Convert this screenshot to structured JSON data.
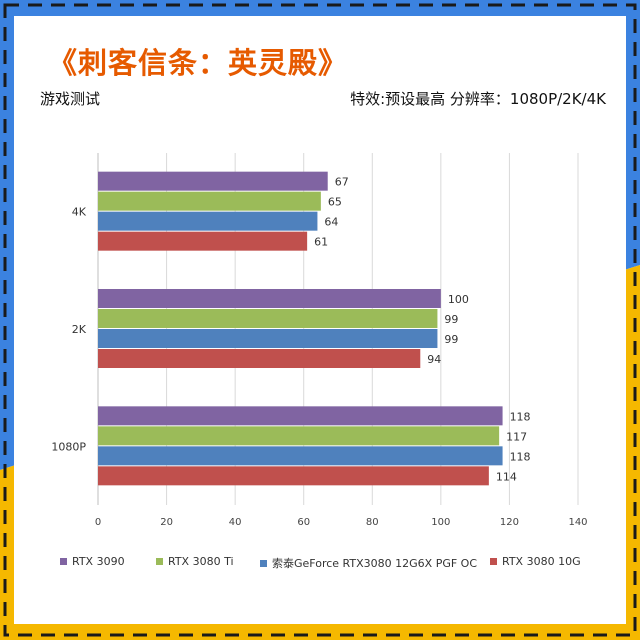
{
  "header": {
    "title": "《刺客信条：英灵殿》",
    "subtitle_left": "游戏测试",
    "subtitle_right": "特效:预设最高  分辨率：1080P/2K/4K"
  },
  "colors": {
    "frame_blue": "#3b82e0",
    "frame_yellow": "#f5b800",
    "title": "#e65a00"
  },
  "chart_data": {
    "type": "bar",
    "orientation": "horizontal",
    "categories": [
      "4K",
      "2K",
      "1080P"
    ],
    "series": [
      {
        "name": "RTX 3090",
        "color": "#8064a2",
        "values": [
          67,
          100,
          118
        ]
      },
      {
        "name": "RTX 3080 Ti",
        "color": "#9bbb59",
        "values": [
          65,
          99,
          117
        ]
      },
      {
        "name": "索泰GeForce RTX3080 12G6X PGF OC",
        "color": "#4f81bd",
        "values": [
          64,
          99,
          118
        ]
      },
      {
        "name": "RTX 3080 10G",
        "color": "#c0504d",
        "values": [
          61,
          94,
          114
        ]
      }
    ],
    "xlim": [
      0,
      140
    ],
    "xticks": [
      0,
      20,
      40,
      60,
      80,
      100,
      120,
      140
    ],
    "grid": true,
    "legend_position": "bottom"
  }
}
